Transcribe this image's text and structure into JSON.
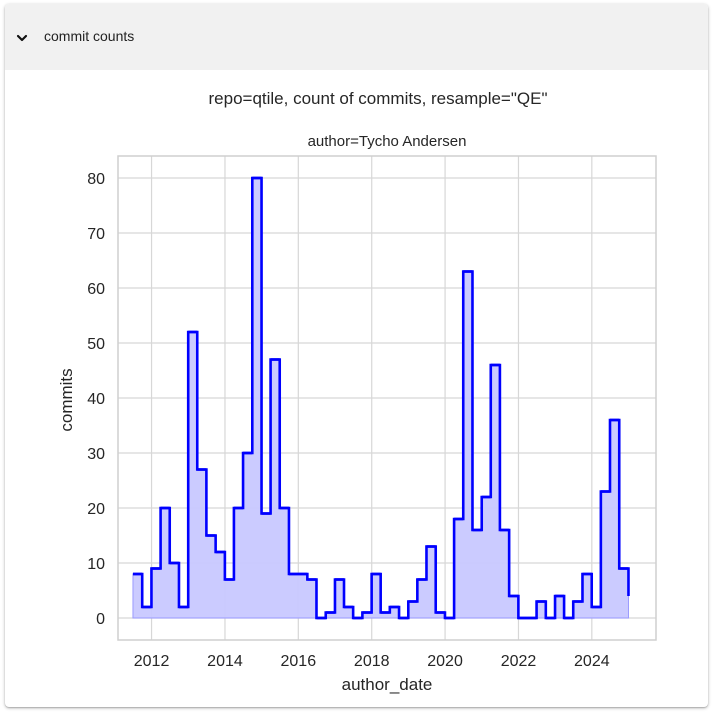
{
  "panel": {
    "title": "commit counts",
    "toggle_icon": "chevron-down-icon"
  },
  "colors": {
    "line": "#0000ff",
    "fill": "#c8c8ff",
    "grid": "#d7d7d7",
    "header_bg": "#f1f1f1"
  },
  "chart_data": {
    "type": "area",
    "step": "post",
    "title": "repo=qtile, count of commits, resample=\"QE\"",
    "subtitle": "author=Tycho Andersen",
    "xlabel": "author_date",
    "ylabel": "commits",
    "xlim": [
      "2011-02-01",
      "2025-10-01"
    ],
    "ylim": [
      -4,
      84
    ],
    "xticks": [
      "2012",
      "2014",
      "2016",
      "2018",
      "2020",
      "2022",
      "2024"
    ],
    "yticks": [
      0,
      10,
      20,
      30,
      40,
      50,
      60,
      70,
      80
    ],
    "grid": true,
    "series": [
      {
        "x": [
          "2011-06-30",
          "2011-09-30",
          "2011-12-31",
          "2012-03-31",
          "2012-06-30",
          "2012-09-30",
          "2012-12-31",
          "2013-03-31",
          "2013-06-30",
          "2013-09-30",
          "2013-12-31",
          "2014-03-31",
          "2014-06-30",
          "2014-09-30",
          "2014-12-31",
          "2015-03-31",
          "2015-06-30",
          "2015-09-30",
          "2015-12-31",
          "2016-03-31",
          "2016-06-30",
          "2016-09-30",
          "2016-12-31",
          "2017-03-31",
          "2017-06-30",
          "2017-09-30",
          "2017-12-31",
          "2018-03-31",
          "2018-06-30",
          "2018-09-30",
          "2018-12-31",
          "2019-03-31",
          "2019-06-30",
          "2019-09-30",
          "2019-12-31",
          "2020-03-31",
          "2020-06-30",
          "2020-09-30",
          "2020-12-31",
          "2021-03-31",
          "2021-06-30",
          "2021-09-30",
          "2021-12-31",
          "2022-03-31",
          "2022-06-30",
          "2022-09-30",
          "2022-12-31",
          "2023-03-31",
          "2023-06-30",
          "2023-09-30",
          "2023-12-31",
          "2024-03-31",
          "2024-06-30",
          "2024-09-30",
          "2024-12-31"
        ],
        "values": [
          8,
          2,
          9,
          20,
          10,
          2,
          52,
          27,
          15,
          12,
          7,
          20,
          30,
          80,
          19,
          47,
          20,
          8,
          8,
          7,
          0,
          1,
          7,
          2,
          0,
          1,
          8,
          1,
          2,
          0,
          3,
          7,
          13,
          1,
          0,
          18,
          63,
          16,
          22,
          46,
          16,
          4,
          0,
          0,
          3,
          0,
          4,
          0,
          3,
          8,
          2,
          23,
          36,
          9,
          4
        ]
      }
    ]
  }
}
